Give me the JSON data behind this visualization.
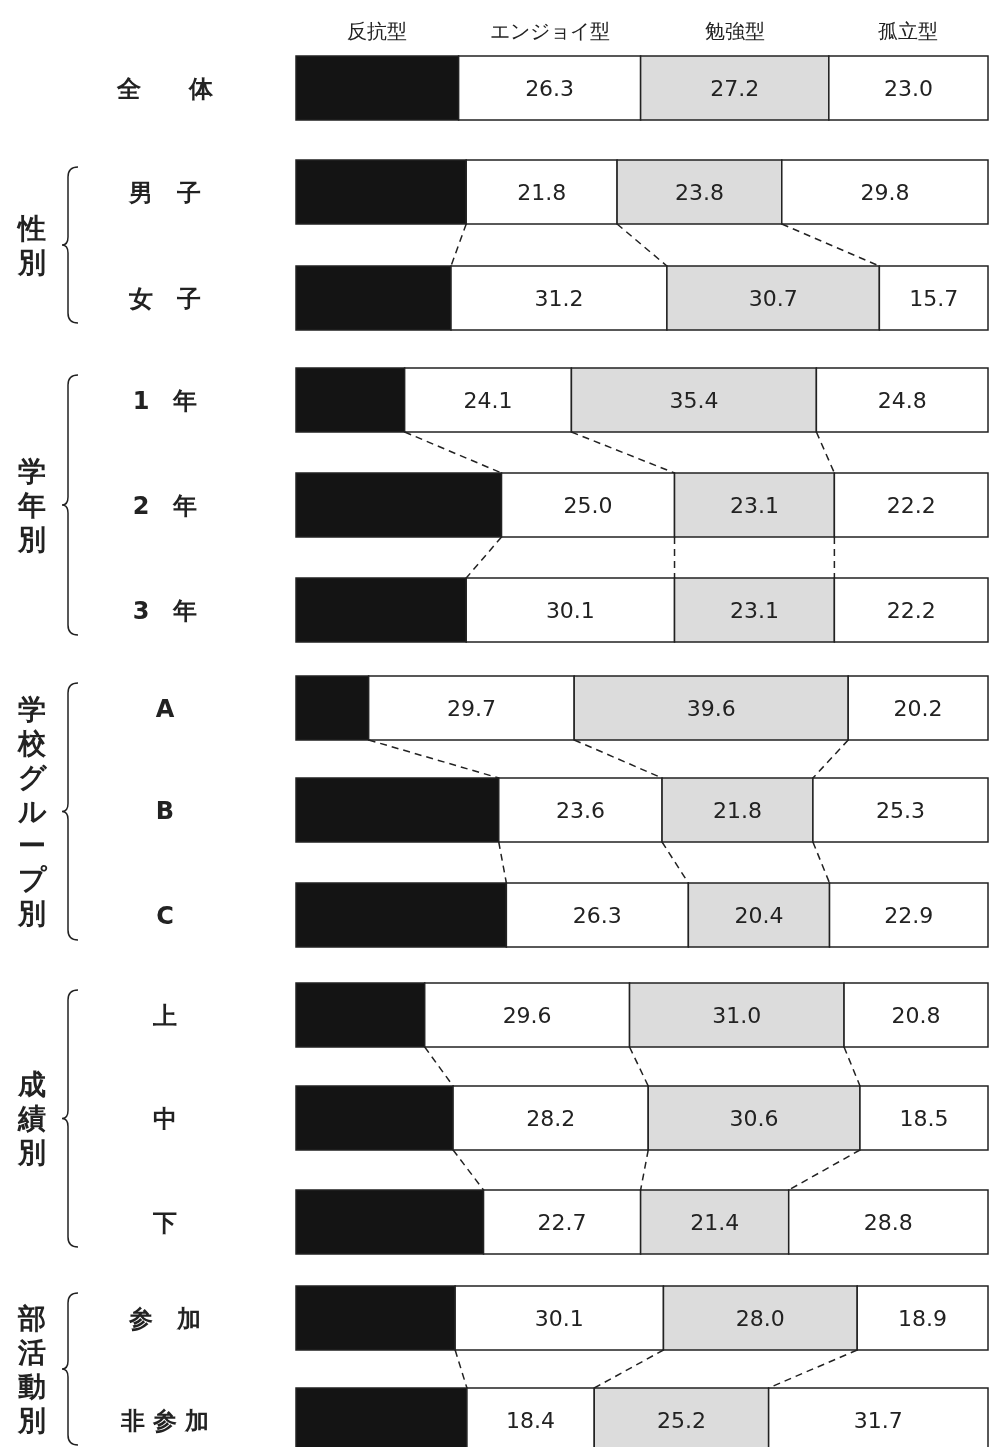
{
  "chart_data": {
    "type": "bar",
    "orientation": "horizontal",
    "stacked": true,
    "legend": "top",
    "tick_labels": false,
    "xlim": [
      0,
      100
    ],
    "categories": [
      "全　　体",
      "男　子",
      "女　子",
      "1　年",
      "2　年",
      "3　年",
      "A",
      "B",
      "C",
      "上",
      "中",
      "下",
      "参　加",
      "非 参 加"
    ],
    "annotations": [
      "性別",
      "学年別",
      "学校グループ別",
      "成績別",
      "部活動別"
    ],
    "series": [
      {
        "name": "反抗型",
        "color": "#141414",
        "values": [
          23.5,
          24.6,
          22.4,
          15.7,
          29.7,
          24.6,
          10.5,
          29.3,
          30.4,
          18.6,
          22.7,
          27.1,
          23.0,
          24.7
        ]
      },
      {
        "name": "エンジョイ型",
        "color": "#ffffff",
        "values": [
          26.3,
          21.8,
          31.2,
          24.1,
          25.0,
          30.1,
          29.7,
          23.6,
          26.3,
          29.6,
          28.2,
          22.7,
          30.1,
          18.4
        ],
        "value_labels": [
          "26.3",
          "21.8",
          "31.2",
          "24.1",
          "25.0",
          "30.1",
          "29.7",
          "23.6",
          "26.3",
          "29.6",
          "28.2",
          "22.7",
          "30.1",
          "18.4"
        ]
      },
      {
        "name": "勉強型",
        "color": "#dcdcdc",
        "values": [
          27.2,
          23.8,
          30.7,
          35.4,
          23.1,
          23.1,
          39.6,
          21.8,
          20.4,
          31.0,
          30.6,
          21.4,
          28.0,
          25.2
        ],
        "value_labels": [
          "27.2",
          "23.8",
          "30.7",
          "35.4",
          "23.1",
          "23.1",
          "39.6",
          "21.8",
          "20.4",
          "31.0",
          "30.6",
          "21.4",
          "28.0",
          "25.2"
        ]
      },
      {
        "name": "孤立型",
        "color": "#ffffff",
        "values": [
          23.0,
          29.8,
          15.7,
          24.8,
          22.2,
          22.2,
          20.2,
          25.3,
          22.9,
          20.8,
          18.5,
          28.8,
          18.9,
          31.7
        ],
        "value_labels": [
          "23.0",
          "29.8",
          "15.7",
          "24.8",
          "22.2",
          "22.2",
          "20.2",
          "25.3",
          "22.9",
          "20.8",
          "18.5",
          "28.8",
          "18.9",
          "31.7"
        ]
      }
    ]
  }
}
